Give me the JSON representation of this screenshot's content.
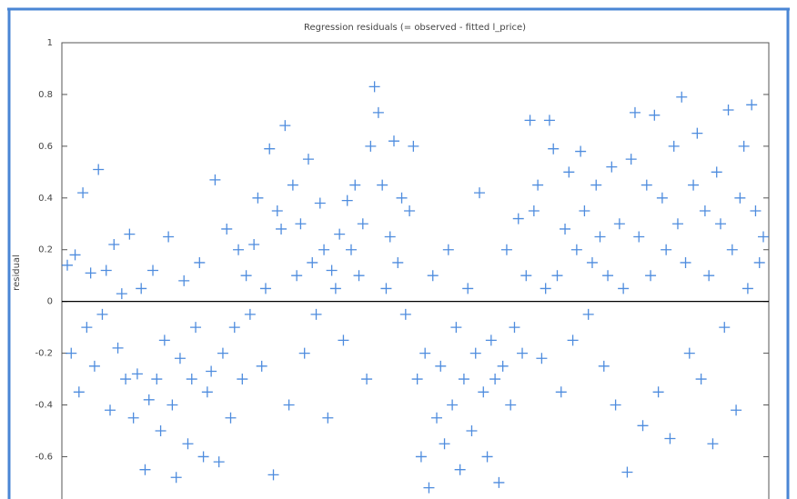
{
  "chart_data": {
    "type": "scatter",
    "title": "Regression residuals (= observed - fitted l_price)",
    "y_label": "residual",
    "color": "#2f78d8",
    "ylim": [
      -0.76,
      1
    ],
    "yticks": [
      -0.6,
      -0.4,
      -0.2,
      0,
      0.2,
      0.4,
      0.6,
      0.8,
      1
    ],
    "zero_line": true,
    "values": [
      0.14,
      -0.2,
      0.18,
      -0.35,
      0.42,
      -0.1,
      0.11,
      -0.25,
      0.51,
      -0.05,
      0.12,
      -0.42,
      0.22,
      -0.18,
      0.03,
      -0.3,
      0.26,
      -0.45,
      -0.28,
      0.05,
      -0.65,
      -0.38,
      0.12,
      -0.3,
      -0.5,
      -0.15,
      0.25,
      -0.4,
      -0.68,
      -0.22,
      0.08,
      -0.55,
      -0.3,
      -0.1,
      0.15,
      -0.6,
      -0.35,
      -0.27,
      0.47,
      -0.62,
      -0.2,
      0.28,
      -0.45,
      -0.1,
      0.2,
      -0.3,
      0.1,
      -0.05,
      0.22,
      0.4,
      -0.25,
      0.05,
      0.59,
      -0.67,
      0.35,
      0.28,
      0.68,
      -0.4,
      0.45,
      0.1,
      0.3,
      -0.2,
      0.55,
      0.15,
      -0.05,
      0.38,
      0.2,
      -0.45,
      0.12,
      0.05,
      0.26,
      -0.15,
      0.39,
      0.2,
      0.45,
      0.1,
      0.3,
      -0.3,
      0.6,
      0.83,
      0.73,
      0.45,
      0.05,
      0.25,
      0.62,
      0.15,
      0.4,
      -0.05,
      0.35,
      0.6,
      -0.3,
      -0.6,
      -0.2,
      -0.72,
      0.1,
      -0.45,
      -0.25,
      -0.55,
      0.2,
      -0.4,
      -0.1,
      -0.65,
      -0.3,
      0.05,
      -0.5,
      -0.2,
      0.42,
      -0.35,
      -0.6,
      -0.15,
      -0.3,
      -0.7,
      -0.25,
      0.2,
      -0.4,
      -0.1,
      0.32,
      -0.2,
      0.1,
      0.7,
      0.35,
      0.45,
      -0.22,
      0.05,
      0.7,
      0.59,
      0.1,
      -0.35,
      0.28,
      0.5,
      -0.15,
      0.2,
      0.58,
      0.35,
      -0.05,
      0.15,
      0.45,
      0.25,
      -0.25,
      0.1,
      0.52,
      -0.4,
      0.3,
      0.05,
      -0.66,
      0.55,
      0.73,
      0.25,
      -0.48,
      0.45,
      0.1,
      0.72,
      -0.35,
      0.4,
      0.2,
      -0.53,
      0.6,
      0.3,
      0.79,
      0.15,
      -0.2,
      0.45,
      0.65,
      -0.3,
      0.35,
      0.1,
      -0.55,
      0.5,
      0.3,
      -0.1,
      0.74,
      0.2,
      -0.42,
      0.4,
      0.6,
      0.05,
      0.76,
      0.35,
      0.15,
      0.25
    ]
  }
}
